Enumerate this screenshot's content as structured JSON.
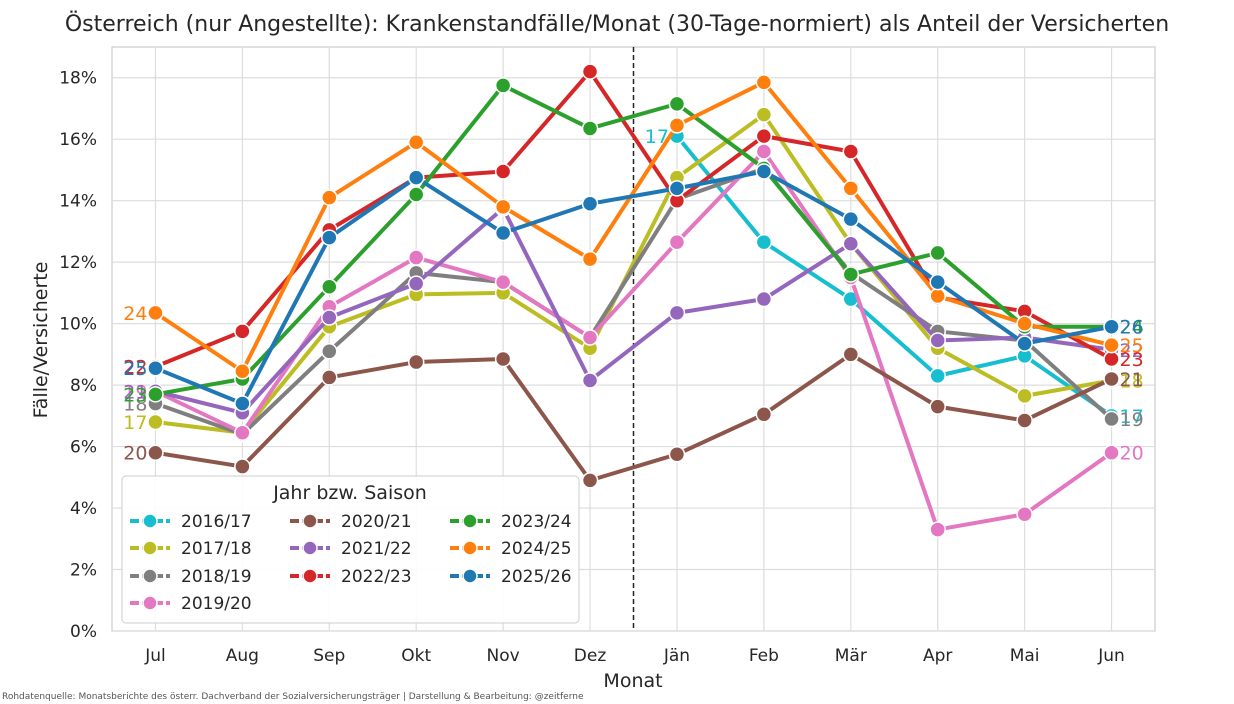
{
  "chart_data": {
    "type": "line",
    "title": "Österreich (nur Angestellte): Krankenstandfälle/Monat (30-Tage-normiert) als Anteil der Versicherten",
    "xlabel": "Monat",
    "ylabel": "Fälle/Versicherte",
    "categories": [
      "Jul",
      "Aug",
      "Sep",
      "Okt",
      "Nov",
      "Dez",
      "Jän",
      "Feb",
      "Mär",
      "Apr",
      "Mai",
      "Jun"
    ],
    "ylim": [
      0,
      0.19
    ],
    "yticks": [
      {
        "value": 0.0,
        "label": "0%"
      },
      {
        "value": 0.02,
        "label": "2%"
      },
      {
        "value": 0.04,
        "label": "4%"
      },
      {
        "value": 0.06,
        "label": "6%"
      },
      {
        "value": 0.08,
        "label": "8%"
      },
      {
        "value": 0.1,
        "label": "10%"
      },
      {
        "value": 0.12,
        "label": "12%"
      },
      {
        "value": 0.14,
        "label": "14%"
      },
      {
        "value": 0.16,
        "label": "16%"
      },
      {
        "value": 0.18,
        "label": "18%"
      }
    ],
    "grid": true,
    "vline_between": [
      "Dez",
      "Jän"
    ],
    "legend": {
      "title": "Jahr bzw. Saison",
      "placement": "lower-left",
      "columns": [
        [
          "2016/17",
          "2017/18",
          "2018/19",
          "2019/20"
        ],
        [
          "2020/21",
          "2021/22",
          "2022/23"
        ],
        [
          "2023/24",
          "2024/25",
          "2025/26"
        ]
      ]
    },
    "series": [
      {
        "name": "2016/17",
        "color": "#17becf",
        "values": [
          null,
          null,
          null,
          null,
          null,
          null,
          0.161,
          0.1265,
          0.108,
          0.083,
          0.0895,
          0.07
        ],
        "start_label": "17",
        "end_label": "17"
      },
      {
        "name": "2017/18",
        "color": "#bcbd22",
        "values": [
          0.068,
          0.0645,
          0.099,
          0.1095,
          0.11,
          0.092,
          0.1475,
          0.168,
          0.126,
          0.092,
          0.0765,
          0.0815
        ],
        "start_label": "17",
        "end_label": "18"
      },
      {
        "name": "2018/19",
        "color": "#7f7f7f",
        "values": [
          0.074,
          0.064,
          0.091,
          0.1165,
          0.1135,
          0.0955,
          0.1405,
          0.1505,
          0.1165,
          0.0975,
          0.0945,
          0.069
        ],
        "start_label": "18",
        "end_label": "19"
      },
      {
        "name": "2019/20",
        "color": "#e377c2",
        "values": [
          0.078,
          0.0645,
          0.1055,
          0.1215,
          0.1135,
          0.0955,
          0.1265,
          0.156,
          0.115,
          0.033,
          0.038,
          0.058
        ],
        "start_label": "19",
        "end_label": "20"
      },
      {
        "name": "2020/21",
        "color": "#8c564b",
        "values": [
          0.058,
          0.0535,
          0.0825,
          0.0875,
          0.0885,
          0.049,
          0.0575,
          0.0705,
          0.09,
          0.073,
          0.0685,
          0.082
        ],
        "start_label": "20",
        "end_label": "21"
      },
      {
        "name": "2021/22",
        "color": "#9467bd",
        "values": [
          0.078,
          0.071,
          0.102,
          0.113,
          0.1375,
          0.0815,
          0.1035,
          0.108,
          0.126,
          0.0945,
          0.0955,
          0.0915
        ],
        "start_label": "21",
        "end_label": "22"
      },
      {
        "name": "2022/23",
        "color": "#d62728",
        "values": [
          0.086,
          0.0975,
          0.1305,
          0.1475,
          0.1495,
          0.182,
          0.14,
          0.161,
          0.156,
          0.1085,
          0.104,
          0.0885
        ],
        "start_label": "22",
        "end_label": "23"
      },
      {
        "name": "2023/24",
        "color": "#2ca02c",
        "values": [
          0.077,
          0.082,
          0.112,
          0.142,
          0.1775,
          0.1635,
          0.1715,
          0.1505,
          0.116,
          0.123,
          0.099,
          0.099
        ],
        "start_label": "23",
        "end_label": "24"
      },
      {
        "name": "2024/25",
        "color": "#ff7f0e",
        "values": [
          0.1035,
          0.0845,
          0.141,
          0.159,
          0.138,
          0.121,
          0.1645,
          0.1785,
          0.144,
          0.109,
          0.1,
          0.093
        ],
        "start_label": "24",
        "end_label": "25"
      },
      {
        "name": "2025/26",
        "color": "#1f77b4",
        "values": [
          0.0855,
          0.074,
          0.128,
          0.1475,
          0.1295,
          0.139,
          0.144,
          0.1495,
          0.134,
          0.1135,
          0.0935,
          0.099
        ],
        "start_label": "25",
        "end_label": "26"
      }
    ]
  },
  "source_note": "Rohdatenquelle: Monatsberichte des österr. Dachverband der Sozialversicherungsträger | Darstellung & Bearbeitung: @zeitferne"
}
